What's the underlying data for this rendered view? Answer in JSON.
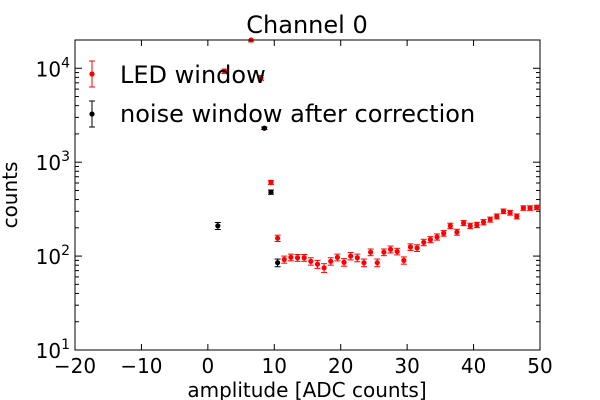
{
  "chart_data": {
    "type": "scatter",
    "title": "Channel 0",
    "xlabel": "amplitude [ADC counts]",
    "ylabel": "counts",
    "xlim": [
      -20,
      50
    ],
    "ylim": [
      10,
      20000
    ],
    "yscale": "log",
    "grid": false,
    "legend_position": "top-left",
    "x_ticks": [
      {
        "value": -20,
        "label": "−20"
      },
      {
        "value": -10,
        "label": "−10"
      },
      {
        "value": 0,
        "label": "0"
      },
      {
        "value": 10,
        "label": "10"
      },
      {
        "value": 20,
        "label": "20"
      },
      {
        "value": 30,
        "label": "30"
      },
      {
        "value": 40,
        "label": "40"
      },
      {
        "value": 50,
        "label": "50"
      }
    ],
    "y_ticks": [
      {
        "value": 10,
        "base": "10",
        "exp": "1"
      },
      {
        "value": 100,
        "base": "10",
        "exp": "2"
      },
      {
        "value": 1000,
        "base": "10",
        "exp": "3"
      },
      {
        "value": 10000,
        "base": "10",
        "exp": "4"
      }
    ],
    "series": [
      {
        "name": "LED window",
        "color": "#ff0000",
        "x": [
          2.5,
          6.5,
          8.0,
          8.5,
          9.5,
          10.5,
          11.5,
          12.5,
          13.5,
          14.5,
          15.5,
          16.5,
          17.5,
          18.5,
          19.5,
          20.5,
          21.5,
          22.5,
          23.5,
          24.5,
          25.5,
          26.5,
          27.5,
          28.5,
          29.5,
          30.5,
          31.5,
          32.5,
          33.5,
          34.5,
          35.5,
          36.5,
          37.5,
          38.5,
          39.5,
          40.5,
          41.5,
          42.5,
          43.5,
          44.5,
          45.5,
          46.5,
          47.5,
          48.5,
          49.5
        ],
        "y": [
          9300,
          20000,
          7900,
          2300,
          610,
          155,
          92,
          97,
          96,
          96,
          88,
          82,
          75,
          88,
          97,
          86,
          100,
          96,
          85,
          110,
          85,
          110,
          118,
          112,
          90,
          125,
          122,
          140,
          150,
          160,
          175,
          210,
          180,
          225,
          210,
          215,
          230,
          245,
          265,
          300,
          290,
          265,
          325,
          325,
          330
        ],
        "yerr": [
          500,
          900,
          450,
          70,
          30,
          12,
          8,
          8,
          8,
          8,
          8,
          8,
          8,
          8,
          8,
          8,
          9,
          9,
          8,
          9,
          8,
          9,
          10,
          9,
          8,
          10,
          10,
          11,
          11,
          12,
          12,
          14,
          13,
          14,
          14,
          14,
          15,
          15,
          16,
          17,
          17,
          16,
          18,
          18,
          18
        ]
      },
      {
        "name": "noise window after correction",
        "color": "#000000",
        "x": [
          1.5,
          8.5,
          9.5,
          10.5
        ],
        "y": [
          210,
          2300,
          480,
          85
        ],
        "yerr": [
          18,
          70,
          25,
          8
        ]
      }
    ]
  }
}
